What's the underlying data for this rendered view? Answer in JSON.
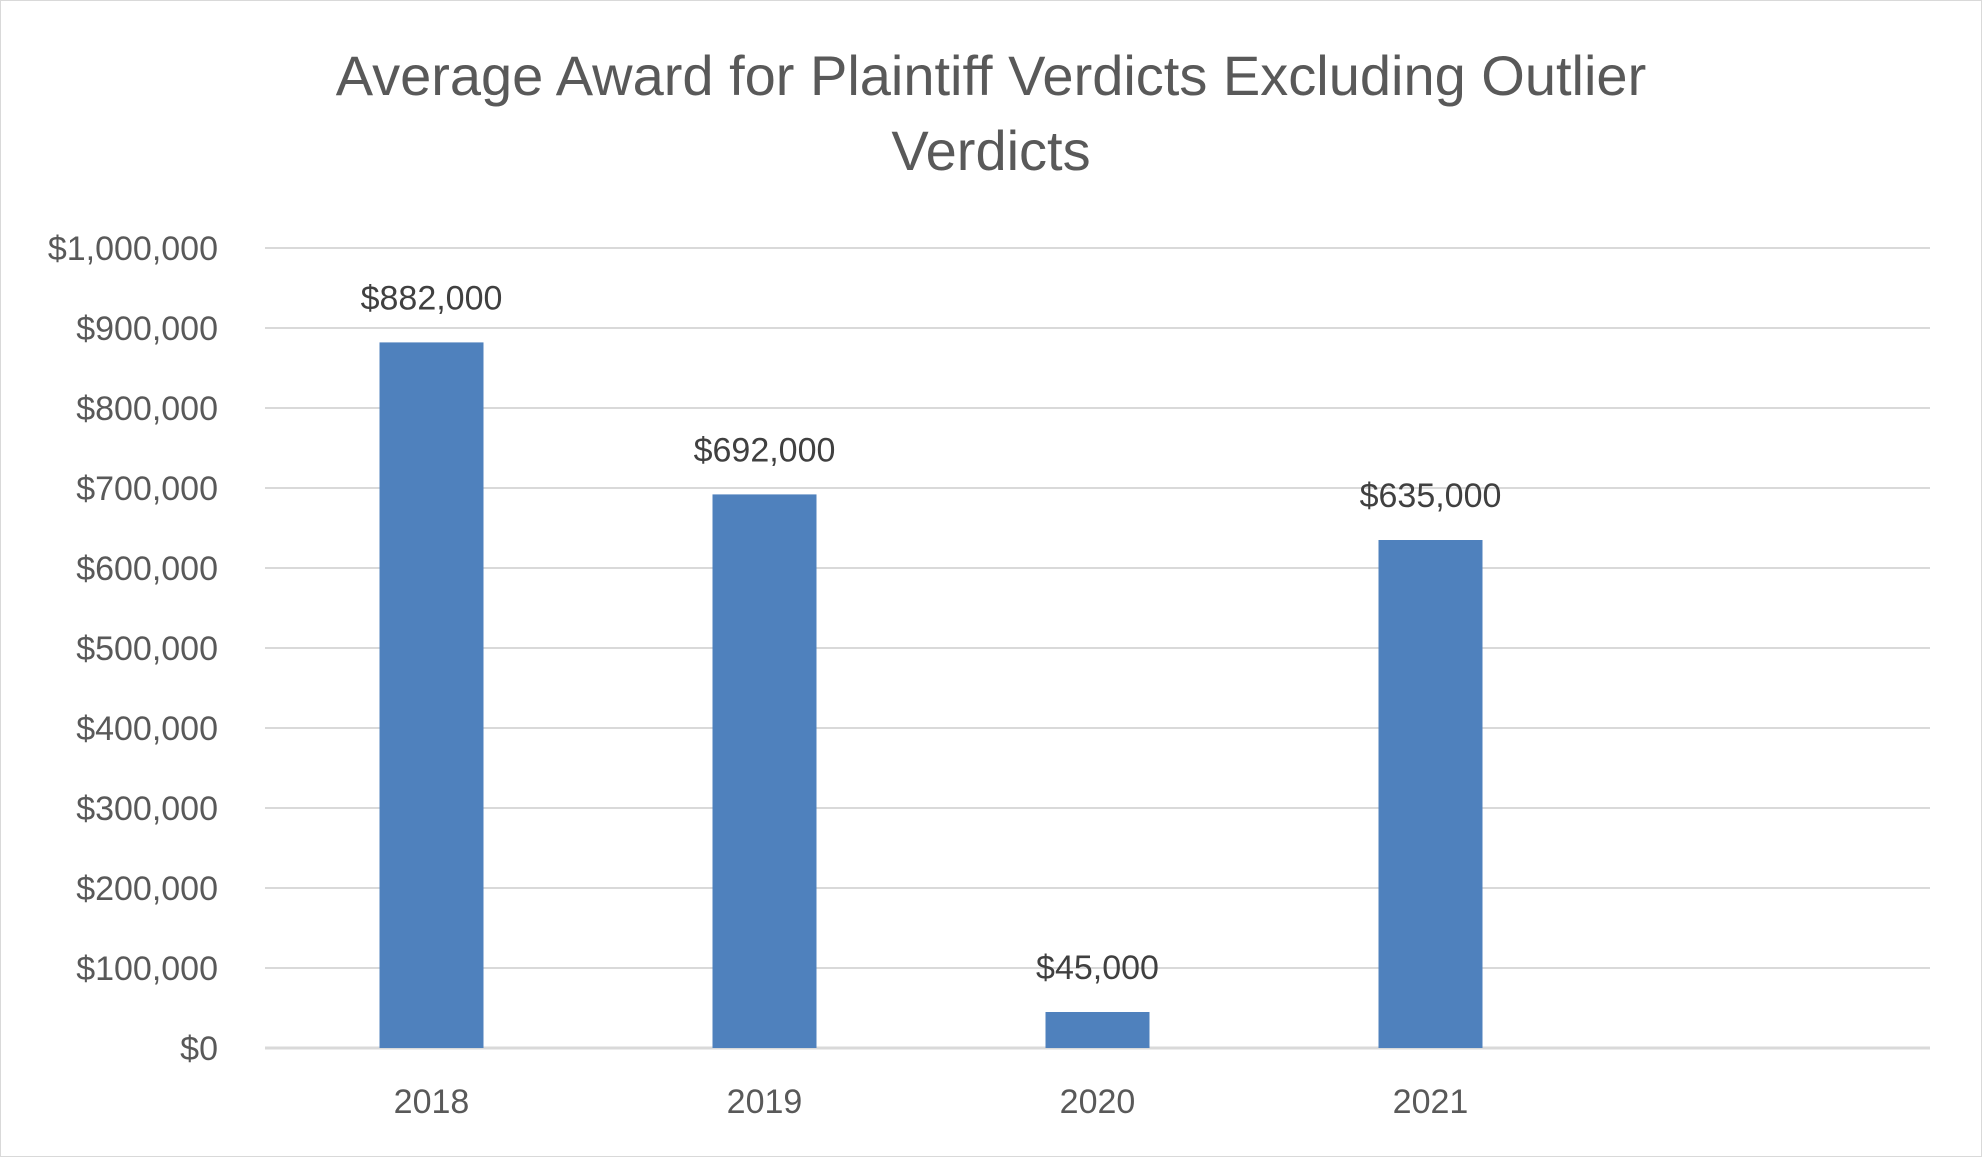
{
  "chart_data": {
    "type": "bar",
    "title_lines": [
      "Average Award for Plaintiff Verdicts Excluding Outlier",
      "Verdicts"
    ],
    "categories": [
      "2018",
      "2019",
      "2020",
      "2021"
    ],
    "values": [
      882000,
      692000,
      45000,
      635000
    ],
    "data_labels": [
      "$882,000",
      "$692,000",
      "$45,000",
      "$635,000"
    ],
    "xlabel": "",
    "ylabel": "",
    "ylim": [
      0,
      1000000
    ],
    "y_ticks": [
      0,
      100000,
      200000,
      300000,
      400000,
      500000,
      600000,
      700000,
      800000,
      900000,
      1000000
    ],
    "y_tick_labels": [
      "$0",
      "$100,000",
      "$200,000",
      "$300,000",
      "$400,000",
      "$500,000",
      "$600,000",
      "$700,000",
      "$800,000",
      "$900,000",
      "$1,000,000"
    ],
    "grid": true,
    "legend": "none",
    "colors": {
      "bar": "#4f81bd",
      "grid": "#d9d9d9",
      "axis": "#d9d9d9",
      "text": "#595959",
      "data_label": "#404040"
    }
  }
}
